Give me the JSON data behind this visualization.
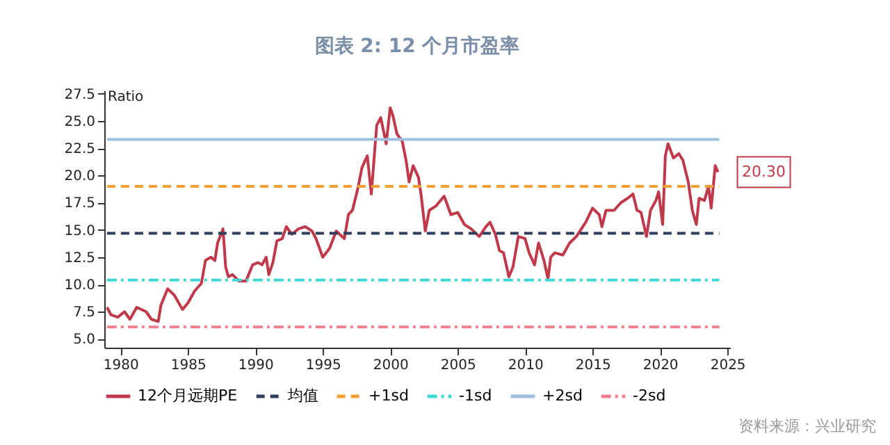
{
  "chart_data": {
    "type": "line",
    "title": "图表 2:  12 个月市盈率",
    "ylabel": "Ratio",
    "xlim": [
      1978.8,
      2025.2
    ],
    "xticks": [
      1980,
      1985,
      1990,
      1995,
      2000,
      2005,
      2010,
      2015,
      2020,
      2025
    ],
    "ylim": [
      4.2,
      27.8
    ],
    "yticks": [
      {
        "value": 5,
        "label": "5.0"
      },
      7.5,
      {
        "value": 10,
        "label": "10.0"
      },
      12.5,
      {
        "value": 15,
        "label": "15.0"
      },
      17.5,
      {
        "value": 20,
        "label": "20.0"
      },
      22.5,
      {
        "value": 25,
        "label": "25.0"
      },
      27.5
    ],
    "grid": false,
    "legend": "bottom",
    "annotations": [
      {
        "text": "20.30",
        "x": 2024.3,
        "y": 20.3
      },
      "资料来源：兴业研究"
    ],
    "series": [
      {
        "name": "12个月远期PE",
        "color": "#c0394a",
        "line_style": "solid",
        "x": [
          1979.0,
          1979.3,
          1979.8,
          1980.3,
          1980.7,
          1981.2,
          1981.9,
          1982.3,
          1982.8,
          1983.0,
          1983.5,
          1984.0,
          1984.6,
          1985.0,
          1985.5,
          1986.0,
          1986.3,
          1986.7,
          1987.0,
          1987.2,
          1987.6,
          1987.8,
          1988.0,
          1988.3,
          1988.8,
          1989.3,
          1989.8,
          1990.2,
          1990.5,
          1990.8,
          1991.0,
          1991.3,
          1991.6,
          1992.0,
          1992.3,
          1992.7,
          1993.2,
          1993.7,
          1994.2,
          1994.5,
          1995.0,
          1995.5,
          1996.0,
          1996.6,
          1996.9,
          1997.2,
          1997.6,
          1997.9,
          1998.3,
          1998.6,
          1999.0,
          1999.3,
          1999.7,
          2000.0,
          2000.2,
          2000.5,
          2000.9,
          2001.2,
          2001.4,
          2001.7,
          2002.1,
          2002.3,
          2002.6,
          2002.9,
          2003.4,
          2004.0,
          2004.5,
          2005.0,
          2005.5,
          2006.0,
          2006.6,
          2007.1,
          2007.4,
          2007.8,
          2008.1,
          2008.4,
          2008.8,
          2009.1,
          2009.5,
          2010.0,
          2010.3,
          2010.7,
          2011.0,
          2011.4,
          2011.7,
          2011.9,
          2012.2,
          2012.8,
          2013.3,
          2013.8,
          2014.5,
          2015.0,
          2015.5,
          2015.7,
          2016.0,
          2016.6,
          2017.1,
          2017.6,
          2018.0,
          2018.3,
          2018.6,
          2019.0,
          2019.3,
          2019.7,
          2019.9,
          2020.2,
          2020.4,
          2020.6,
          2021.0,
          2021.4,
          2021.7,
          2022.1,
          2022.4,
          2022.7,
          2022.9,
          2023.3,
          2023.6,
          2023.8,
          2024.1,
          2024.3
        ],
        "values": [
          7.9,
          7.2,
          7.0,
          7.5,
          6.8,
          7.9,
          7.5,
          6.8,
          6.6,
          8.1,
          9.6,
          9.0,
          7.7,
          8.3,
          9.4,
          10.1,
          12.2,
          12.5,
          12.2,
          13.8,
          15.1,
          11.6,
          10.7,
          10.9,
          10.3,
          10.3,
          11.8,
          12.0,
          11.8,
          12.5,
          10.9,
          12.0,
          14.0,
          14.2,
          15.3,
          14.6,
          15.1,
          15.3,
          14.9,
          14.2,
          12.5,
          13.3,
          14.9,
          14.2,
          16.4,
          16.8,
          18.8,
          20.7,
          21.8,
          18.3,
          24.6,
          25.3,
          22.9,
          26.2,
          25.5,
          23.8,
          23.1,
          21.2,
          19.4,
          20.9,
          19.8,
          18.1,
          14.9,
          16.8,
          17.2,
          18.1,
          16.4,
          16.6,
          15.5,
          15.1,
          14.4,
          15.3,
          15.7,
          14.6,
          13.1,
          12.9,
          10.7,
          11.6,
          14.4,
          14.2,
          12.9,
          11.8,
          13.8,
          12.2,
          10.5,
          12.5,
          12.9,
          12.7,
          13.8,
          14.4,
          15.7,
          17.0,
          16.4,
          15.3,
          16.8,
          16.8,
          17.5,
          17.9,
          18.3,
          16.8,
          16.6,
          14.4,
          16.8,
          17.7,
          18.5,
          15.5,
          21.8,
          22.9,
          21.6,
          22.0,
          21.4,
          19.4,
          16.8,
          15.5,
          17.9,
          17.7,
          19.0,
          17.0,
          20.9,
          20.3
        ]
      },
      {
        "name": "均值",
        "color": "#2f3e5c",
        "line_style": "dashed",
        "x": [
          1979.0,
          2024.4
        ],
        "values": [
          14.7,
          14.7
        ]
      },
      {
        "name": "+1sd",
        "color": "#f0a030",
        "line_style": "dashed",
        "x": [
          1979.0,
          2024.4
        ],
        "values": [
          19.0,
          19.0
        ]
      },
      {
        "name": "-1sd",
        "color": "#40d8d0",
        "line_style": "dotted",
        "x": [
          1979.0,
          2024.4
        ],
        "values": [
          10.4,
          10.4
        ]
      },
      {
        "name": "+2sd",
        "color": "#9fbfdf",
        "line_style": "solid",
        "x": [
          1979.0,
          2024.4
        ],
        "values": [
          23.3,
          23.3
        ]
      },
      {
        "name": "-2sd",
        "color": "#f08090",
        "line_style": "dotted",
        "x": [
          1979.0,
          2024.4
        ],
        "values": [
          6.1,
          6.1
        ]
      }
    ]
  }
}
